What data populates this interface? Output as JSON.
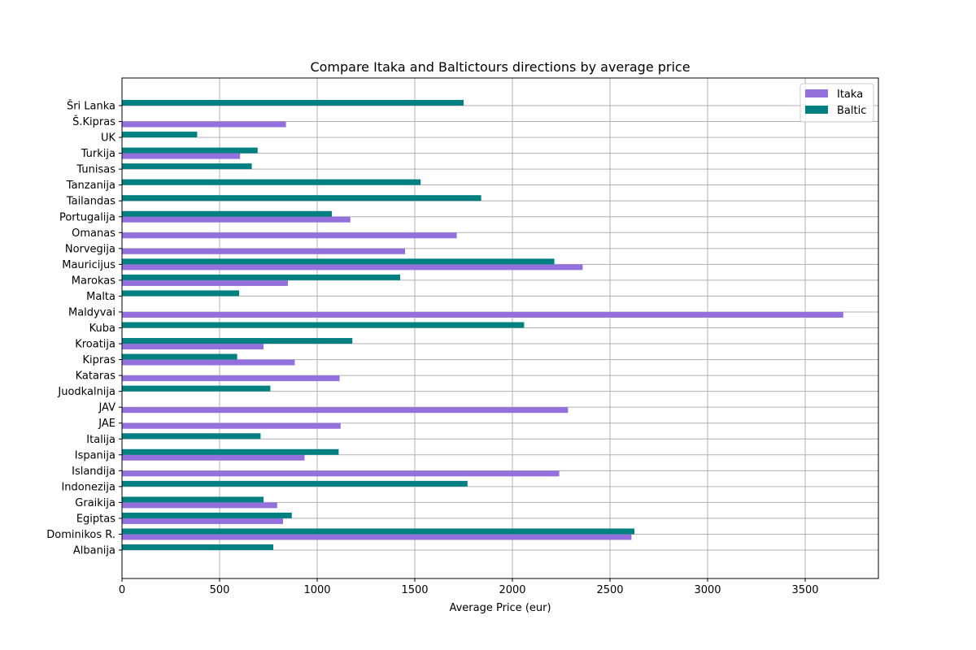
{
  "chart_data": {
    "type": "bar",
    "orientation": "horizontal",
    "title": "Compare Itaka and Baltictours directions by average price",
    "xlabel": "Average Price (eur)",
    "ylabel": "",
    "xlim": [
      0,
      3875
    ],
    "xticks": [
      0,
      500,
      1000,
      1500,
      2000,
      2500,
      3000,
      3500
    ],
    "grid": true,
    "legend_position": "top-right",
    "categories": [
      "Albanija",
      "Dominikos R.",
      "Egiptas",
      "Graikija",
      "Indonezija",
      "Islandija",
      "Ispanija",
      "Italija",
      "JAE",
      "JAV",
      "Juodkalnija",
      "Kataras",
      "Kipras",
      "Kroatija",
      "Kuba",
      "Maldyvai",
      "Malta",
      "Marokas",
      "Mauricijus",
      "Norvegija",
      "Omanas",
      "Portugalija",
      "Tailandas",
      "Tanzanija",
      "Tunisas",
      "Turkija",
      "UK",
      "Š.Kipras",
      "Šri Lanka"
    ],
    "series": [
      {
        "name": "Itaka",
        "color": "#9370db",
        "values": [
          null,
          2610,
          825,
          795,
          null,
          2240,
          935,
          null,
          1120,
          2285,
          null,
          1115,
          885,
          725,
          null,
          3695,
          null,
          850,
          2360,
          1450,
          1715,
          1170,
          null,
          null,
          null,
          605,
          null,
          840,
          null
        ]
      },
      {
        "name": "Baltic",
        "color": "#008080",
        "values": [
          775,
          2625,
          870,
          725,
          1770,
          null,
          1110,
          710,
          null,
          null,
          760,
          null,
          590,
          1180,
          2060,
          null,
          600,
          1425,
          2215,
          null,
          null,
          1075,
          1840,
          1530,
          665,
          695,
          385,
          null,
          1750
        ]
      }
    ]
  }
}
